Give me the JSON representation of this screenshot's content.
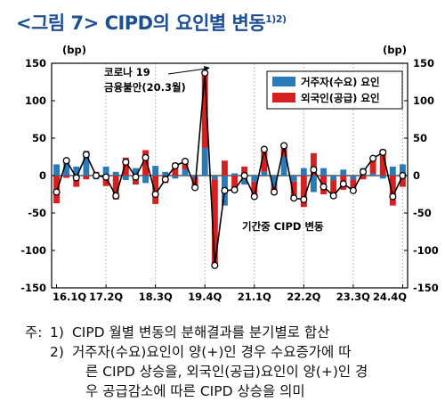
{
  "title": {
    "main": "<그림 7> CIPD의 요인별 변동",
    "sup": "1)2)"
  },
  "chart_data": {
    "type": "bar+line",
    "y_unit_left": "(bp)",
    "y_unit_right": "(bp)",
    "ylim": [
      -150,
      150
    ],
    "yticks": [
      150,
      100,
      50,
      0,
      -50,
      -100,
      -150
    ],
    "x_tick_labels": [
      "16.1Q",
      "17.2Q",
      "18.3Q",
      "19.4Q",
      "21.1Q",
      "22.2Q",
      "23.3Q",
      "24.4Q"
    ],
    "x_tick_index": [
      0,
      5,
      10,
      15,
      20,
      25,
      30,
      35
    ],
    "n_periods": 36,
    "legend": [
      "거주자(수요) 요인",
      "외국인(공급) 요인"
    ],
    "series": [
      {
        "name": "거주자(수요) 요인",
        "color": "#2a7ab8",
        "values": [
          15,
          23,
          12,
          33,
          -5,
          12,
          5,
          -6,
          10,
          -10,
          13,
          5,
          -4,
          8,
          -3,
          37,
          -5,
          -40,
          3,
          -12,
          -8,
          5,
          -15,
          25,
          -8,
          10,
          -22,
          10,
          -6,
          8,
          -5,
          10,
          3,
          -4,
          12,
          15
        ]
      },
      {
        "name": "외국인(공급) 요인",
        "color": "#d42020",
        "values": [
          -37,
          -3,
          -15,
          -5,
          5,
          -14,
          -32,
          24,
          -12,
          34,
          -38,
          -10,
          17,
          11,
          -13,
          100,
          -115,
          20,
          -22,
          12,
          -20,
          30,
          -7,
          15,
          -22,
          -42,
          30,
          -25,
          -21,
          -19,
          -15,
          -5,
          20,
          35,
          -40,
          -15
        ]
      },
      {
        "name": "기간중 CIPD 변동",
        "color": "#000000",
        "values": [
          -22,
          20,
          -3,
          28,
          0,
          -2,
          -27,
          18,
          -2,
          24,
          -25,
          -5,
          13,
          19,
          -16,
          137,
          -120,
          -20,
          -19,
          0,
          -28,
          35,
          -22,
          40,
          -30,
          -32,
          8,
          -15,
          -27,
          -11,
          -20,
          5,
          23,
          31,
          -28,
          0
        ]
      }
    ],
    "annotations": {
      "covid_label_1": "코로나 19",
      "covid_label_2": "금융불안(20.3월)",
      "cipd_label": "기간중 CIPD 변동"
    }
  },
  "notes": {
    "prefix": "주:",
    "n1": "1)",
    "line1": "CIPD 월별 변동의 분해결과를 분기별로 합산",
    "n2": "2)",
    "line2": "거주자(수요)요인이 양(+)인 경우 수요증가에 따",
    "line3": "른 CIPD 상승을, 외국인(공급)요인이 양(+)인 경",
    "line4": "우 공급감소에 따른 CIPD 상승을 의미"
  }
}
